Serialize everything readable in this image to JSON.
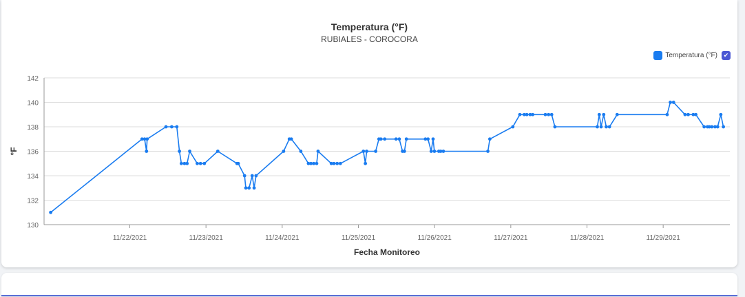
{
  "colors": {
    "series": "#1a7cf0",
    "grid": "#dddddd",
    "axis": "#999999",
    "check": "#4b58d4"
  },
  "chart_data": {
    "type": "line",
    "title": "Temperatura (°F)",
    "subtitle": "RUBIALES - COROCORA",
    "xlabel": "Fecha Monitoreo",
    "ylabel": "°F",
    "ylim": [
      130,
      142
    ],
    "yticks": [
      130,
      132,
      134,
      136,
      138,
      140,
      142
    ],
    "xlim": [
      "2021-11-21T00:00",
      "2021-11-30T00:00"
    ],
    "xticks": [
      {
        "label": "11/22/2021",
        "x": "2021-11-22T03:00"
      },
      {
        "label": "11/23/2021",
        "x": "2021-11-23T03:00"
      },
      {
        "label": "11/24/2021",
        "x": "2021-11-24T03:00"
      },
      {
        "label": "11/25/2021",
        "x": "2021-11-25T03:00"
      },
      {
        "label": "11/26/2021",
        "x": "2021-11-26T03:00"
      },
      {
        "label": "11/27/2021",
        "x": "2021-11-27T03:00"
      },
      {
        "label": "11/28/2021",
        "x": "2021-11-28T03:00"
      },
      {
        "label": "11/29/2021",
        "x": "2021-11-29T03:00"
      }
    ],
    "grid": true,
    "legend": "top-right",
    "series": [
      {
        "name": "Temperatura (°F)",
        "points": [
          [
            "2021-11-21T02:05",
            131
          ],
          [
            "2021-11-22T06:51",
            137
          ],
          [
            "2021-11-22T07:40",
            137
          ],
          [
            "2021-11-22T08:16",
            136
          ],
          [
            "2021-11-22T08:28",
            137
          ],
          [
            "2021-11-22T14:24",
            138
          ],
          [
            "2021-11-22T16:12",
            138
          ],
          [
            "2021-11-22T17:49",
            138
          ],
          [
            "2021-11-22T18:38",
            136
          ],
          [
            "2021-11-22T19:14",
            135
          ],
          [
            "2021-11-22T20:14",
            135
          ],
          [
            "2021-11-22T21:03",
            135
          ],
          [
            "2021-11-22T21:52",
            136
          ],
          [
            "2021-11-23T00:15",
            135
          ],
          [
            "2021-11-23T01:16",
            135
          ],
          [
            "2021-11-23T02:29",
            135
          ],
          [
            "2021-11-23T06:43",
            136
          ],
          [
            "2021-11-23T12:46",
            135
          ],
          [
            "2021-11-23T13:10",
            135
          ],
          [
            "2021-11-23T15:09",
            134
          ],
          [
            "2021-11-23T15:33",
            133
          ],
          [
            "2021-11-23T16:34",
            133
          ],
          [
            "2021-11-23T17:33",
            134
          ],
          [
            "2021-11-23T18:10",
            133
          ],
          [
            "2021-11-23T18:46",
            134
          ],
          [
            "2021-11-24T03:27",
            136
          ],
          [
            "2021-11-24T05:15",
            137
          ],
          [
            "2021-11-24T05:53",
            137
          ],
          [
            "2021-11-24T08:52",
            136
          ],
          [
            "2021-11-24T11:16",
            135
          ],
          [
            "2021-11-24T12:03",
            135
          ],
          [
            "2021-11-24T12:56",
            135
          ],
          [
            "2021-11-24T13:52",
            135
          ],
          [
            "2021-11-24T14:18",
            136
          ],
          [
            "2021-11-24T18:29",
            135
          ],
          [
            "2021-11-24T19:18",
            135
          ],
          [
            "2021-11-24T20:19",
            135
          ],
          [
            "2021-11-24T21:19",
            135
          ],
          [
            "2021-11-25T04:35",
            136
          ],
          [
            "2021-11-25T05:12",
            135
          ],
          [
            "2021-11-25T05:36",
            136
          ],
          [
            "2021-11-25T08:27",
            136
          ],
          [
            "2021-11-25T09:28",
            137
          ],
          [
            "2021-11-25T10:05",
            137
          ],
          [
            "2021-11-25T11:17",
            137
          ],
          [
            "2021-11-25T14:52",
            137
          ],
          [
            "2021-11-25T15:53",
            137
          ],
          [
            "2021-11-25T16:54",
            136
          ],
          [
            "2021-11-25T17:30",
            136
          ],
          [
            "2021-11-25T18:07",
            137
          ],
          [
            "2021-11-26T00:07",
            137
          ],
          [
            "2021-11-26T00:56",
            137
          ],
          [
            "2021-11-26T01:56",
            136
          ],
          [
            "2021-11-26T02:32",
            137
          ],
          [
            "2021-11-26T02:57",
            136
          ],
          [
            "2021-11-26T04:20",
            136
          ],
          [
            "2021-11-26T04:56",
            136
          ],
          [
            "2021-11-26T05:46",
            136
          ],
          [
            "2021-11-26T19:47",
            136
          ],
          [
            "2021-11-26T20:24",
            137
          ],
          [
            "2021-11-27T03:39",
            138
          ],
          [
            "2021-11-27T05:51",
            139
          ],
          [
            "2021-11-27T07:15",
            139
          ],
          [
            "2021-11-27T08:03",
            139
          ],
          [
            "2021-11-27T09:06",
            139
          ],
          [
            "2021-11-27T09:54",
            139
          ],
          [
            "2021-11-27T13:53",
            139
          ],
          [
            "2021-11-27T14:54",
            139
          ],
          [
            "2021-11-27T15:53",
            139
          ],
          [
            "2021-11-27T16:54",
            138
          ],
          [
            "2021-11-28T06:15",
            138
          ],
          [
            "2021-11-28T06:52",
            139
          ],
          [
            "2021-11-28T07:27",
            138
          ],
          [
            "2021-11-28T08:16",
            139
          ],
          [
            "2021-11-28T09:04",
            138
          ],
          [
            "2021-11-28T10:05",
            138
          ],
          [
            "2021-11-28T12:30",
            139
          ],
          [
            "2021-11-29T04:15",
            139
          ],
          [
            "2021-11-29T05:15",
            140
          ],
          [
            "2021-11-29T06:16",
            140
          ],
          [
            "2021-11-29T09:53",
            139
          ],
          [
            "2021-11-29T10:53",
            139
          ],
          [
            "2021-11-29T12:29",
            139
          ],
          [
            "2021-11-29T13:17",
            139
          ],
          [
            "2021-11-29T15:54",
            138
          ],
          [
            "2021-11-29T16:56",
            138
          ],
          [
            "2021-11-29T17:32",
            138
          ],
          [
            "2021-11-29T18:20",
            138
          ],
          [
            "2021-11-29T19:20",
            138
          ],
          [
            "2021-11-29T20:09",
            138
          ],
          [
            "2021-11-29T21:09",
            139
          ],
          [
            "2021-11-29T21:58",
            138
          ]
        ]
      }
    ]
  }
}
